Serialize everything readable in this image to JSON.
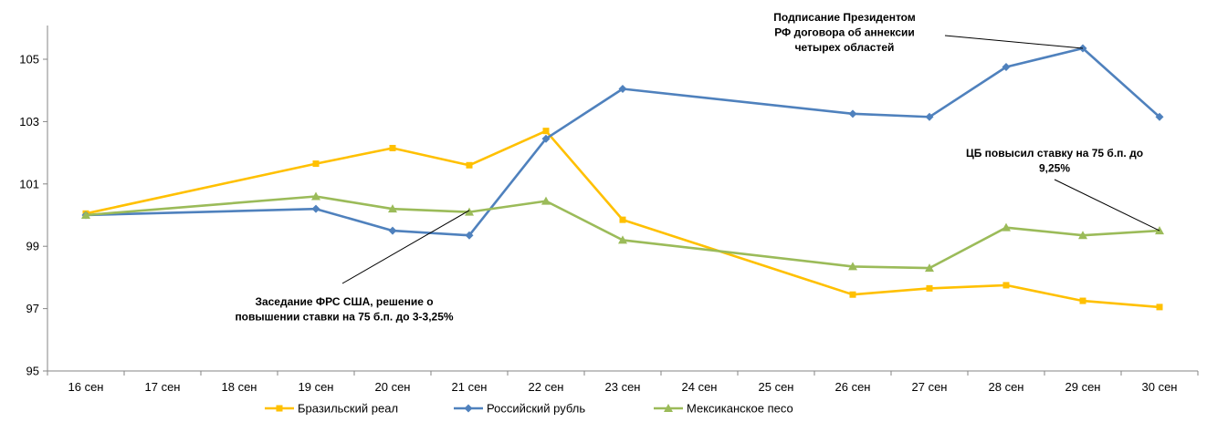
{
  "chart_data": {
    "type": "line",
    "categories": [
      "16 сен",
      "17 сен",
      "18 сен",
      "19 сен",
      "20 сен",
      "21 сен",
      "22 сен",
      "23 сен",
      "24 сен",
      "25 сен",
      "26 сен",
      "27 сен",
      "28 сен",
      "29 сен",
      "30 сен"
    ],
    "ylim": [
      95,
      106
    ],
    "yticks": [
      "95",
      "97",
      "99",
      "101",
      "103",
      "105"
    ],
    "grid": false,
    "legend_position": "bottom",
    "series": [
      {
        "name": "Бразильский реал",
        "color": "#FFC000",
        "marker": "square",
        "values": [
          100.05,
          null,
          null,
          101.65,
          102.15,
          101.6,
          102.7,
          99.85,
          null,
          null,
          97.45,
          97.65,
          97.75,
          97.25,
          97.05
        ]
      },
      {
        "name": "Российский рубль",
        "color": "#4F81BD",
        "marker": "diamond",
        "values": [
          100.0,
          null,
          null,
          100.2,
          99.5,
          99.35,
          102.45,
          104.05,
          null,
          null,
          103.25,
          103.15,
          104.75,
          105.35,
          103.15
        ]
      },
      {
        "name": "Мексиканское песо",
        "color": "#9BBB59",
        "marker": "triangle",
        "values": [
          100.0,
          null,
          null,
          100.6,
          100.2,
          100.1,
          100.45,
          99.2,
          null,
          null,
          98.35,
          98.3,
          99.6,
          99.35,
          99.5
        ]
      }
    ],
    "annotations": [
      {
        "lines": [
          "Подписание Президентом",
          "РФ договора об аннексии",
          "четырех областей"
        ],
        "target_category": "29 сен",
        "target_value": 105.35
      },
      {
        "lines": [
          "ЦБ повысил ставку на 75 б.п. до",
          "9,25%"
        ],
        "target_category": "30 сен",
        "target_value": 99.5
      },
      {
        "lines": [
          "Заседание ФРС США, решение о",
          "повышении ставки на 75 б.п. до 3-3,25%"
        ],
        "target_category": "21 сен",
        "target_value": 100.15
      }
    ]
  }
}
